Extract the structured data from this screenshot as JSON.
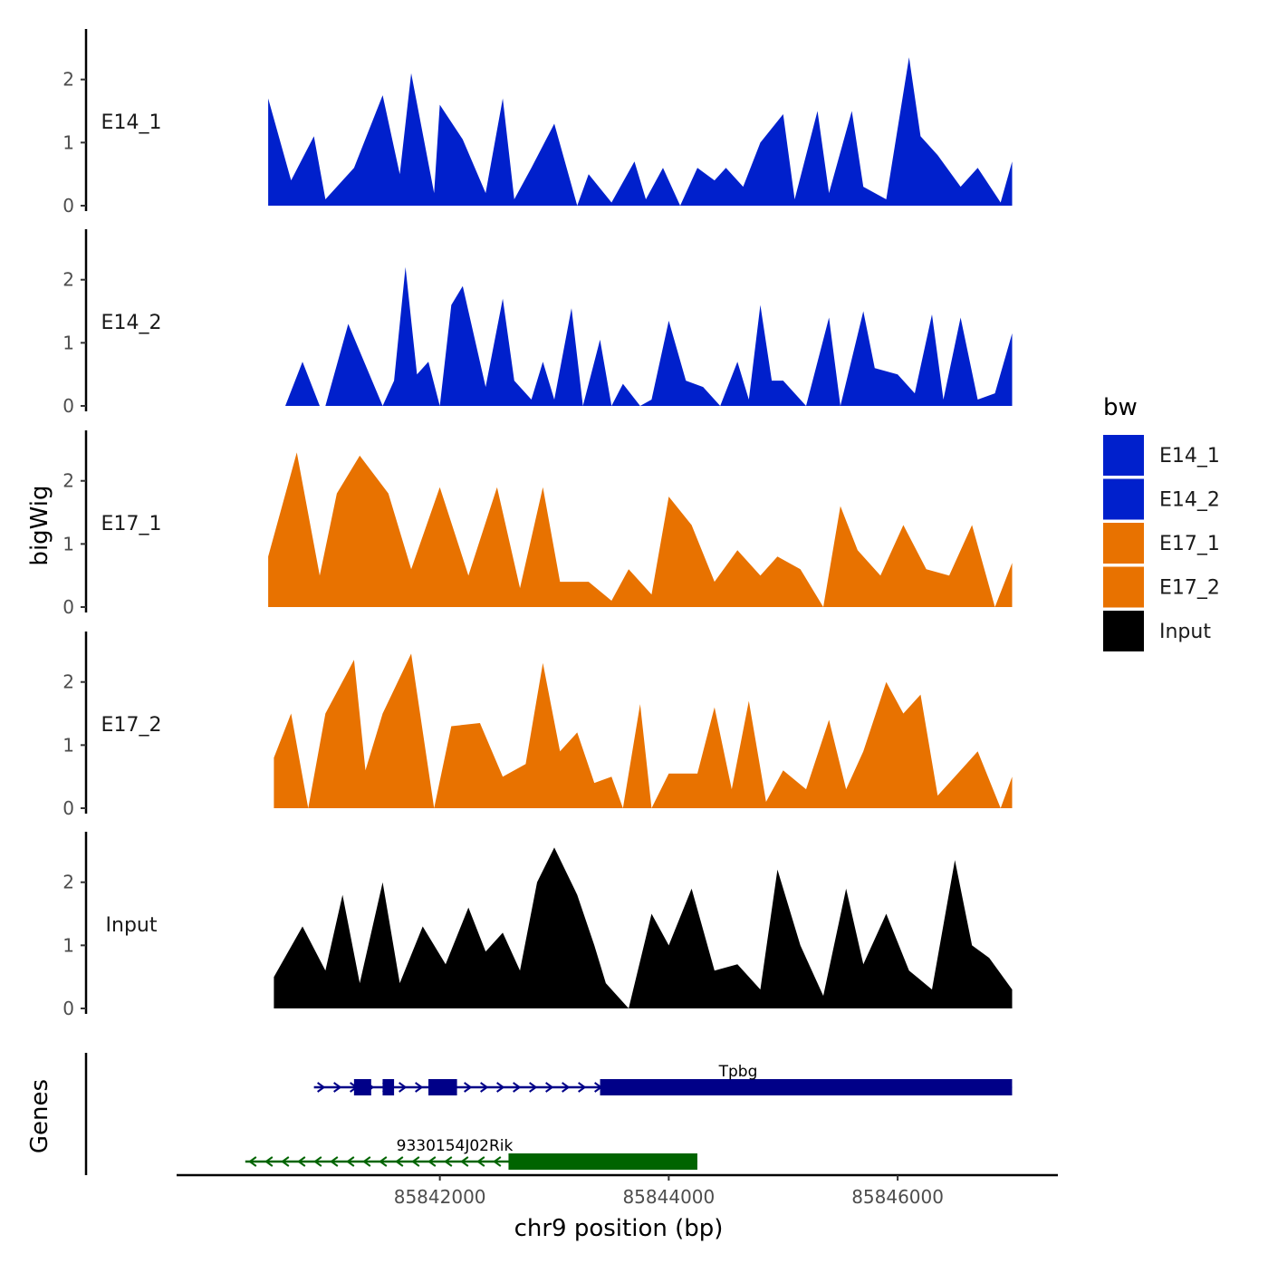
{
  "colors": {
    "E14": "#0020CC",
    "E17": "#E87200",
    "Input": "#000000",
    "gene_plus": "#000088",
    "gene_minus": "#006400"
  },
  "chart_data": {
    "type": "area",
    "title": "",
    "xlabel": "chr9 position (bp)",
    "ylabel": "bigWig",
    "genes_ylabel": "Genes",
    "xlim": [
      85839700,
      85847400
    ],
    "ylim": [
      0,
      2.8
    ],
    "x_ticks": [
      85842000,
      85844000,
      85846000
    ],
    "x_tick_labels": [
      "85842000",
      "85844000",
      "85846000"
    ],
    "y_ticks": [
      0,
      1,
      2
    ],
    "y_tick_labels": [
      "0",
      "1",
      "2"
    ],
    "legend": {
      "title": "bw",
      "placement": "right",
      "entries": [
        {
          "label": "E14_1",
          "color": "#0020CC"
        },
        {
          "label": "E14_2",
          "color": "#0020CC"
        },
        {
          "label": "E17_1",
          "color": "#E87200"
        },
        {
          "label": "E17_2",
          "color": "#E87200"
        },
        {
          "label": "Input",
          "color": "#000000"
        }
      ]
    },
    "series": [
      {
        "name": "E14_1",
        "color": "#0020CC",
        "x": [
          85840500,
          85840700,
          85840900,
          85841000,
          85841250,
          85841500,
          85841650,
          85841750,
          85841950,
          85842000,
          85842200,
          85842400,
          85842550,
          85842650,
          85842800,
          85843000,
          85843200,
          85843300,
          85843500,
          85843700,
          85843800,
          85843950,
          85844100,
          85844250,
          85844400,
          85844500,
          85844650,
          85844800,
          85845000,
          85845100,
          85845300,
          85845400,
          85845600,
          85845700,
          85845900,
          85846100,
          85846200,
          85846350,
          85846550,
          85846700,
          85846900,
          85847000
        ],
        "values": [
          1.7,
          0.4,
          1.1,
          0.1,
          0.6,
          1.75,
          0.5,
          2.1,
          0.2,
          1.6,
          1.05,
          0.2,
          1.7,
          0.1,
          0.6,
          1.3,
          0.0,
          0.5,
          0.05,
          0.7,
          0.1,
          0.6,
          0.0,
          0.6,
          0.4,
          0.6,
          0.3,
          1.0,
          1.45,
          0.1,
          1.5,
          0.2,
          1.5,
          0.3,
          0.1,
          2.35,
          1.1,
          0.8,
          0.3,
          0.6,
          0.05,
          0.7
        ]
      },
      {
        "name": "E14_2",
        "color": "#0020CC",
        "x": [
          85840650,
          85840800,
          85840950,
          85841000,
          85841200,
          85841500,
          85841600,
          85841700,
          85841800,
          85841900,
          85842000,
          85842100,
          85842200,
          85842400,
          85842550,
          85842650,
          85842800,
          85842900,
          85843000,
          85843150,
          85843250,
          85843400,
          85843500,
          85843600,
          85843750,
          85843850,
          85844000,
          85844150,
          85844300,
          85844450,
          85844600,
          85844700,
          85844800,
          85844900,
          85845000,
          85845200,
          85845400,
          85845500,
          85845700,
          85845800,
          85846000,
          85846150,
          85846300,
          85846400,
          85846550,
          85846700,
          85846850,
          85847000
        ],
        "values": [
          0.0,
          0.7,
          0.0,
          0.0,
          1.3,
          0.0,
          0.4,
          2.2,
          0.5,
          0.7,
          0.0,
          1.6,
          1.9,
          0.3,
          1.7,
          0.4,
          0.1,
          0.7,
          0.1,
          1.55,
          0.0,
          1.05,
          0.0,
          0.35,
          0.0,
          0.1,
          1.35,
          0.4,
          0.3,
          0.0,
          0.7,
          0.1,
          1.6,
          0.4,
          0.4,
          0.0,
          1.4,
          0.0,
          1.5,
          0.6,
          0.5,
          0.2,
          1.45,
          0.1,
          1.4,
          0.1,
          0.2,
          1.15
        ]
      },
      {
        "name": "E17_1",
        "color": "#E87200",
        "x": [
          85840500,
          85840750,
          85840950,
          85841100,
          85841300,
          85841550,
          85841750,
          85842000,
          85842250,
          85842500,
          85842700,
          85842900,
          85843050,
          85843300,
          85843500,
          85843650,
          85843850,
          85844000,
          85844200,
          85844400,
          85844600,
          85844800,
          85844950,
          85845150,
          85845350,
          85845500,
          85845650,
          85845850,
          85846050,
          85846250,
          85846450,
          85846650,
          85846850,
          85847000
        ],
        "values": [
          0.8,
          2.45,
          0.5,
          1.8,
          2.4,
          1.8,
          0.6,
          1.9,
          0.5,
          1.9,
          0.3,
          1.9,
          0.4,
          0.4,
          0.1,
          0.6,
          0.2,
          1.75,
          1.3,
          0.4,
          0.9,
          0.5,
          0.8,
          0.6,
          0.0,
          1.6,
          0.9,
          0.5,
          1.3,
          0.6,
          0.5,
          1.3,
          0.0,
          0.7
        ]
      },
      {
        "name": "E17_2",
        "color": "#E87200",
        "x": [
          85840550,
          85840700,
          85840850,
          85841000,
          85841250,
          85841350,
          85841500,
          85841750,
          85841950,
          85842100,
          85842350,
          85842550,
          85842750,
          85842900,
          85843050,
          85843200,
          85843350,
          85843500,
          85843600,
          85843750,
          85843850,
          85844000,
          85844250,
          85844400,
          85844550,
          85844700,
          85844850,
          85845000,
          85845200,
          85845400,
          85845550,
          85845700,
          85845900,
          85846050,
          85846200,
          85846350,
          85846550,
          85846700,
          85846900,
          85847000
        ],
        "values": [
          0.8,
          1.5,
          0.0,
          1.5,
          2.35,
          0.6,
          1.5,
          2.45,
          0.0,
          1.3,
          1.35,
          0.5,
          0.7,
          2.3,
          0.9,
          1.2,
          0.4,
          0.5,
          0.0,
          1.65,
          0.0,
          0.55,
          0.55,
          1.6,
          0.3,
          1.7,
          0.1,
          0.6,
          0.3,
          1.4,
          0.3,
          0.9,
          2.0,
          1.5,
          1.8,
          0.2,
          0.6,
          0.9,
          0.0,
          0.5
        ]
      },
      {
        "name": "Input",
        "color": "#000000",
        "x": [
          85840550,
          85840800,
          85841000,
          85841150,
          85841300,
          85841500,
          85841650,
          85841850,
          85842050,
          85842250,
          85842400,
          85842550,
          85842700,
          85842850,
          85843000,
          85843200,
          85843350,
          85843450,
          85843650,
          85843850,
          85844000,
          85844200,
          85844400,
          85844600,
          85844800,
          85844950,
          85845150,
          85845350,
          85845550,
          85845700,
          85845900,
          85846100,
          85846300,
          85846500,
          85846650,
          85846800,
          85847000
        ],
        "values": [
          0.5,
          1.3,
          0.6,
          1.8,
          0.4,
          2.0,
          0.4,
          1.3,
          0.7,
          1.6,
          0.9,
          1.2,
          0.6,
          2.0,
          2.55,
          1.8,
          1.0,
          0.4,
          0.0,
          1.5,
          1.0,
          1.9,
          0.6,
          0.7,
          0.3,
          2.2,
          1.0,
          0.2,
          1.9,
          0.7,
          1.5,
          0.6,
          0.3,
          2.35,
          1.0,
          0.8,
          0.3
        ]
      }
    ],
    "genes": [
      {
        "name": "Tpbg",
        "strand": "+",
        "color": "#000088",
        "start": 85840900,
        "end": 85847000,
        "exons": [
          [
            85841250,
            85841400
          ],
          [
            85841500,
            85841600
          ],
          [
            85841900,
            85842150
          ],
          [
            85843400,
            85847000
          ]
        ]
      },
      {
        "name": "9330154J02Rik",
        "strand": "-",
        "color": "#006400",
        "start": 85840300,
        "end": 85844250,
        "exons": [
          [
            85842600,
            85844250
          ]
        ]
      }
    ]
  }
}
